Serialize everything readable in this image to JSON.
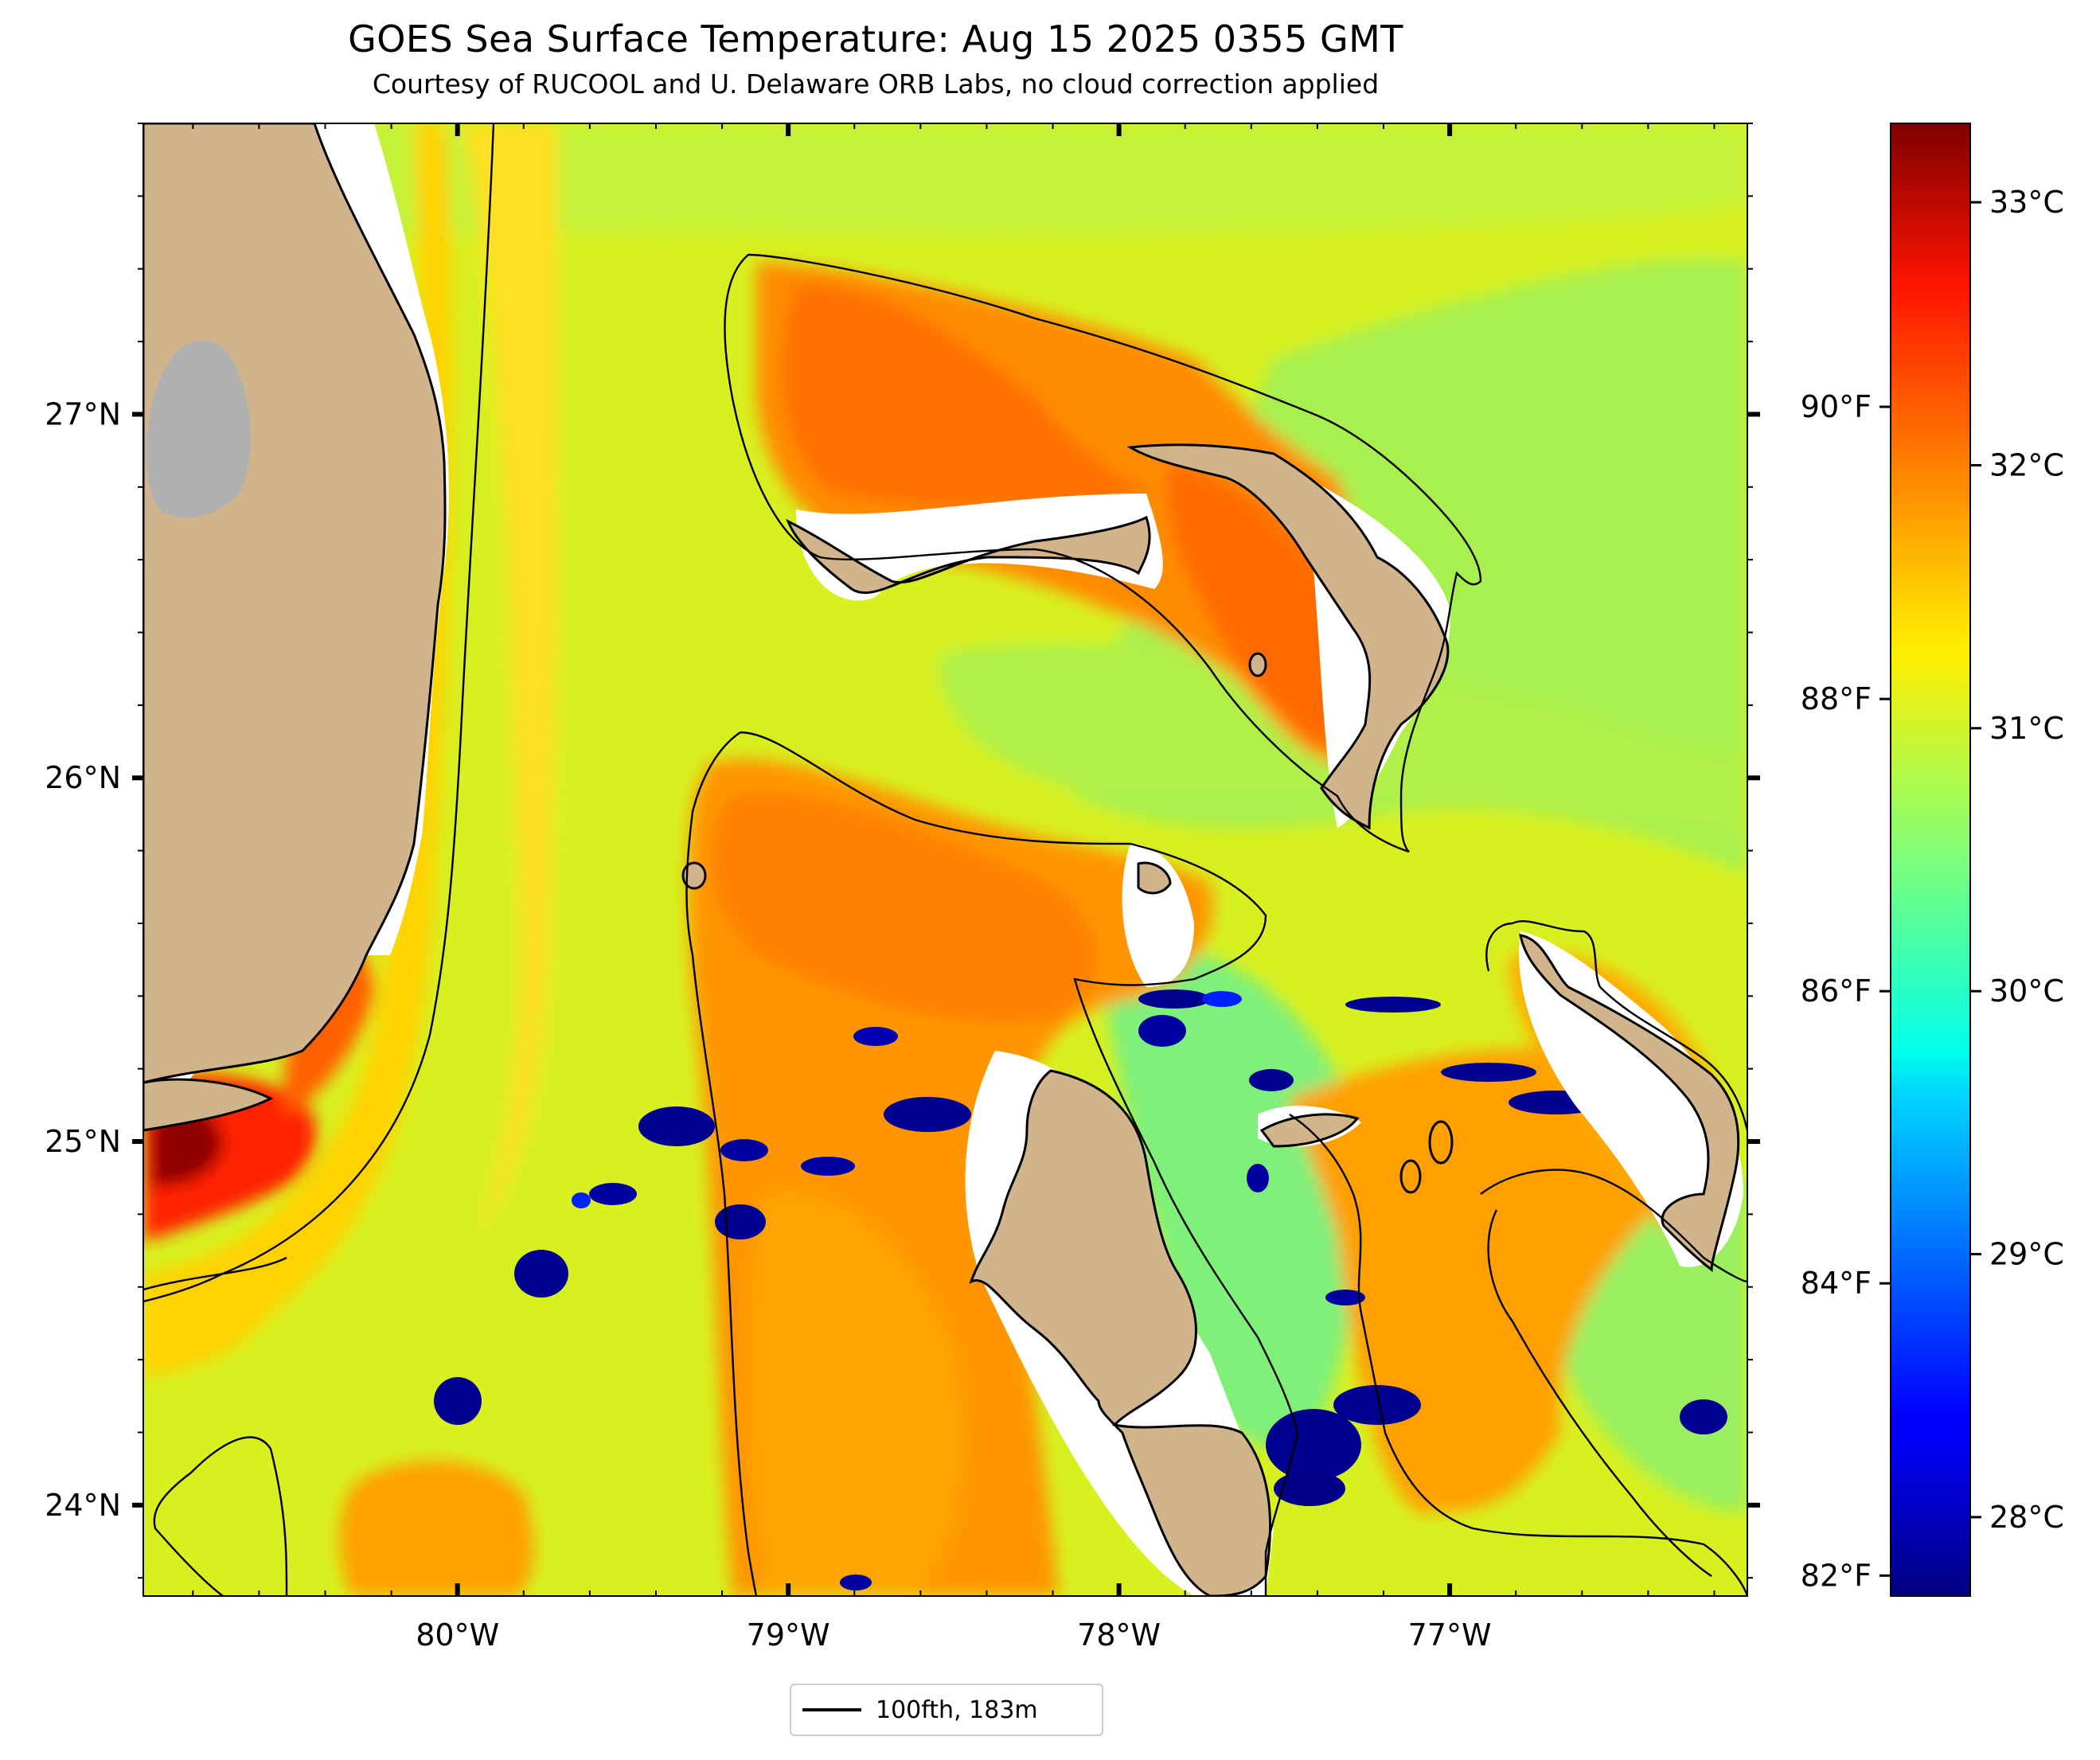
{
  "title": "GOES Sea Surface Temperature: Aug 15 2025 0355 GMT",
  "subtitle": "Courtesy of RUCOOL and U. Delaware ORB Labs, no cloud correction applied",
  "map": {
    "lon_range": [
      -80.95,
      -76.1
    ],
    "lat_range": [
      23.75,
      27.8
    ],
    "lon_ticks": [
      {
        "value": -80,
        "label": "80°W"
      },
      {
        "value": -79,
        "label": "79°W"
      },
      {
        "value": -78,
        "label": "78°W"
      },
      {
        "value": -77,
        "label": "77°W"
      }
    ],
    "lat_ticks": [
      {
        "value": 24,
        "label": "24°N"
      },
      {
        "value": 25,
        "label": "25°N"
      },
      {
        "value": 26,
        "label": "26°N"
      },
      {
        "value": 27,
        "label": "27°N"
      }
    ],
    "land_color": "#d2b48c",
    "lake_color": "#b0b0b0",
    "contour_label": "100fth, 183m"
  },
  "colorbar": {
    "colormap": "jet",
    "range_c": [
      27.7,
      33.3
    ],
    "celsius_ticks": [
      {
        "value": 28,
        "label": "28°C"
      },
      {
        "value": 29,
        "label": "29°C"
      },
      {
        "value": 30,
        "label": "30°C"
      },
      {
        "value": 31,
        "label": "31°C"
      },
      {
        "value": 32,
        "label": "32°C"
      },
      {
        "value": 33,
        "label": "33°C"
      }
    ],
    "fahrenheit_ticks": [
      {
        "value": 82,
        "label": "82°F"
      },
      {
        "value": 84,
        "label": "84°F"
      },
      {
        "value": 86,
        "label": "86°F"
      },
      {
        "value": 88,
        "label": "88°F"
      },
      {
        "value": 90,
        "label": "90°F"
      }
    ]
  }
}
